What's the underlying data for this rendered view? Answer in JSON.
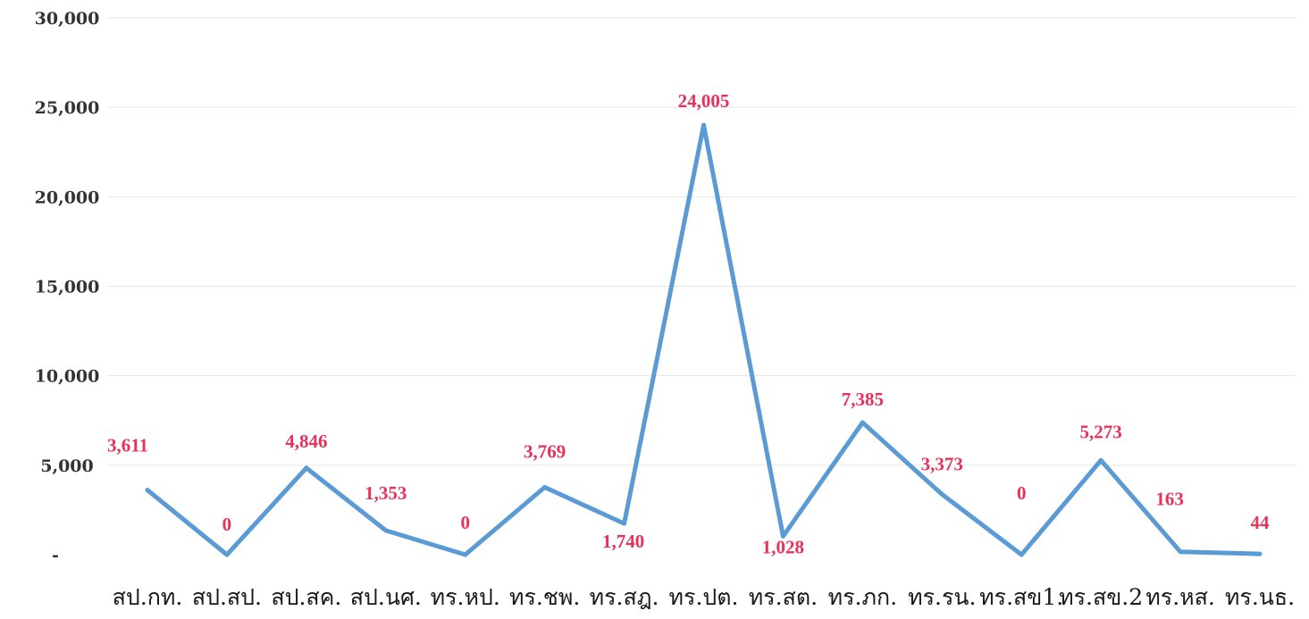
{
  "chart_data": {
    "type": "line",
    "title": "",
    "xlabel": "",
    "ylabel": "",
    "categories": [
      "สป.กท.",
      "สป.สป.",
      "สป.สค.",
      "สป.นศ.",
      "ทร.หป.",
      "ทร.ชพ.",
      "ทร.สฎ.",
      "ทร.ปต.",
      "ทร.สต.",
      "ทร.ภก.",
      "ทร.รน.",
      "ทร.สข1.",
      "ทร.สข.2",
      "ทร.หส.",
      "ทร.นธ."
    ],
    "series": [
      {
        "values": [
          3611,
          0,
          4846,
          1353,
          0,
          3769,
          1740,
          24005,
          1028,
          7385,
          3373,
          0,
          5273,
          163,
          44
        ],
        "data_labels": [
          "3,611",
          "0",
          "4,846",
          "1,353",
          "0",
          "3,769",
          "1,740",
          "24,005",
          "1,028",
          "7,385",
          "3,373",
          "0",
          "5,273",
          "163",
          "44"
        ]
      }
    ],
    "ylim": [
      0,
      30000
    ],
    "y_ticks": [
      {
        "value": 0,
        "label": "-"
      },
      {
        "value": 5000,
        "label": "5,000"
      },
      {
        "value": 10000,
        "label": "10,000"
      },
      {
        "value": 15000,
        "label": "15,000"
      },
      {
        "value": 20000,
        "label": "20,000"
      },
      {
        "value": 25000,
        "label": "25,000"
      },
      {
        "value": 30000,
        "label": "30,000"
      }
    ],
    "grid": true,
    "legend": "none",
    "colors": {
      "line": "#5b9bd5",
      "data_label": "#e8325a",
      "grid": "#e6e6e6",
      "tick_text": "#333333"
    }
  }
}
